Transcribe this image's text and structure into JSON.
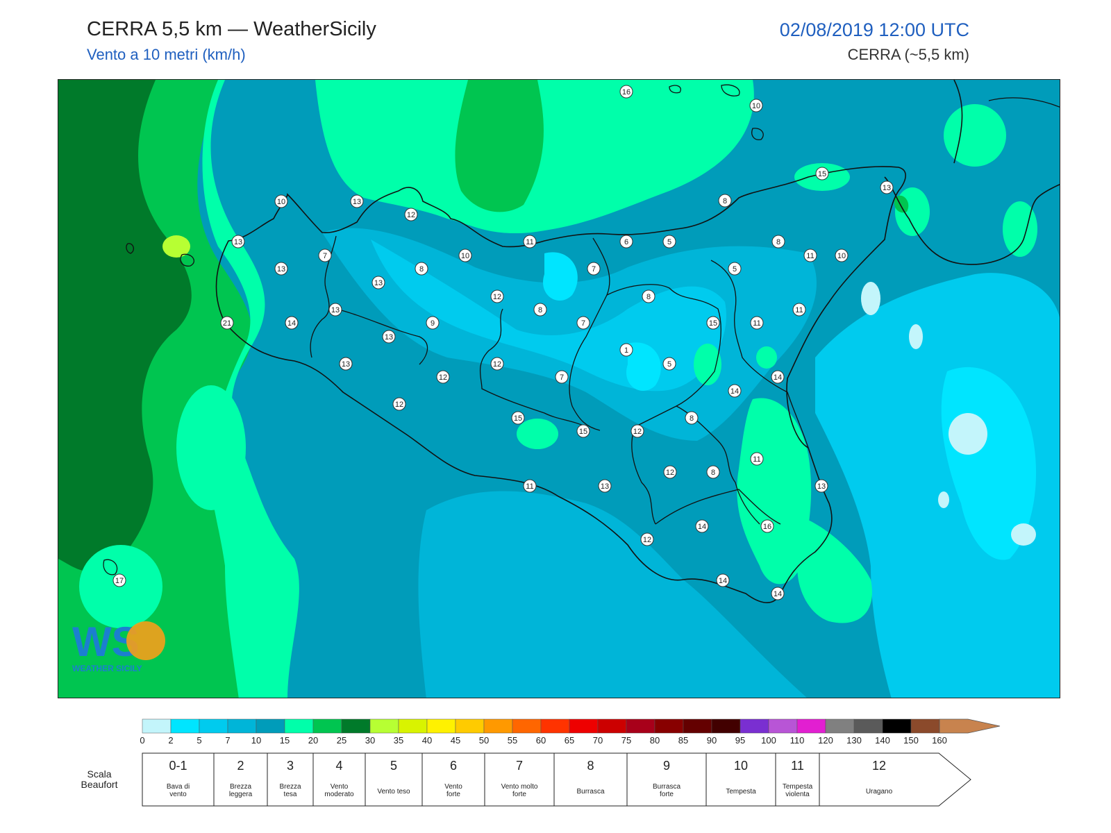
{
  "header": {
    "title": "CERRA 5,5 km — WeatherSicily",
    "subtitle": "Vento a 10 metri (km/h)",
    "datetime": "02/08/2019 12:00 UTC",
    "model": "CERRA (~5,5 km)"
  },
  "logo": {
    "letters": "WS",
    "text": "WEATHER SICILY"
  },
  "colorbar": {
    "colors": [
      "#c3f5fb",
      "#00e5ff",
      "#00cbee",
      "#00b5d8",
      "#009cba",
      "#00ffaa",
      "#00c550",
      "#007a2a",
      "#b7ff33",
      "#d9f300",
      "#fff100",
      "#ffcb00",
      "#ff9900",
      "#ff6600",
      "#ff3300",
      "#ee0000",
      "#cc0000",
      "#a8001a",
      "#880000",
      "#640000",
      "#420000",
      "#7a2fd1",
      "#b855d6",
      "#e21fd1",
      "#808080",
      "#5a5a5a",
      "#000000",
      "#8b4a2b",
      "#c8834e"
    ],
    "ticks": [
      "0",
      "2",
      "5",
      "7",
      "10",
      "15",
      "20",
      "25",
      "30",
      "35",
      "40",
      "45",
      "50",
      "55",
      "60",
      "65",
      "70",
      "75",
      "80",
      "85",
      "90",
      "95",
      "100",
      "110",
      "120",
      "130",
      "140",
      "150",
      "160"
    ]
  },
  "beaufort": {
    "label_line1": "Scala",
    "label_line2": "Beaufort",
    "classes": [
      {
        "num": "0-1",
        "desc": [
          "Bava di",
          "vento"
        ]
      },
      {
        "num": "2",
        "desc": [
          "Brezza",
          "leggera"
        ]
      },
      {
        "num": "3",
        "desc": [
          "Brezza",
          "tesa"
        ]
      },
      {
        "num": "4",
        "desc": [
          "Vento",
          "moderato"
        ]
      },
      {
        "num": "5",
        "desc": [
          "Vento teso"
        ]
      },
      {
        "num": "6",
        "desc": [
          "Vento",
          "forte"
        ]
      },
      {
        "num": "7",
        "desc": [
          "Vento molto",
          "forte"
        ]
      },
      {
        "num": "8",
        "desc": [
          "Burrasca"
        ]
      },
      {
        "num": "9",
        "desc": [
          "Burrasca",
          "forte"
        ]
      },
      {
        "num": "10",
        "desc": [
          "Tempesta"
        ]
      },
      {
        "num": "11",
        "desc": [
          "Tempesta",
          "violenta"
        ]
      },
      {
        "num": "12",
        "desc": [
          "Uragano"
        ]
      }
    ]
  },
  "stations": [
    "16",
    "10",
    "15",
    "13",
    "10",
    "13",
    "12",
    "8",
    "13",
    "7",
    "13",
    "8",
    "10",
    "11",
    "6",
    "5",
    "8",
    "7",
    "5",
    "10",
    "13",
    "14",
    "13",
    "12",
    "8",
    "9",
    "8",
    "7",
    "15",
    "11",
    "11",
    "21",
    "14",
    "13",
    "12",
    "1",
    "5",
    "13",
    "12",
    "7",
    "14",
    "14",
    "12",
    "12",
    "15",
    "15",
    "8",
    "11",
    "11",
    "15",
    "12",
    "8",
    "12",
    "13",
    "11",
    "13",
    "14",
    "16",
    "12",
    "14",
    "14",
    "17"
  ]
}
